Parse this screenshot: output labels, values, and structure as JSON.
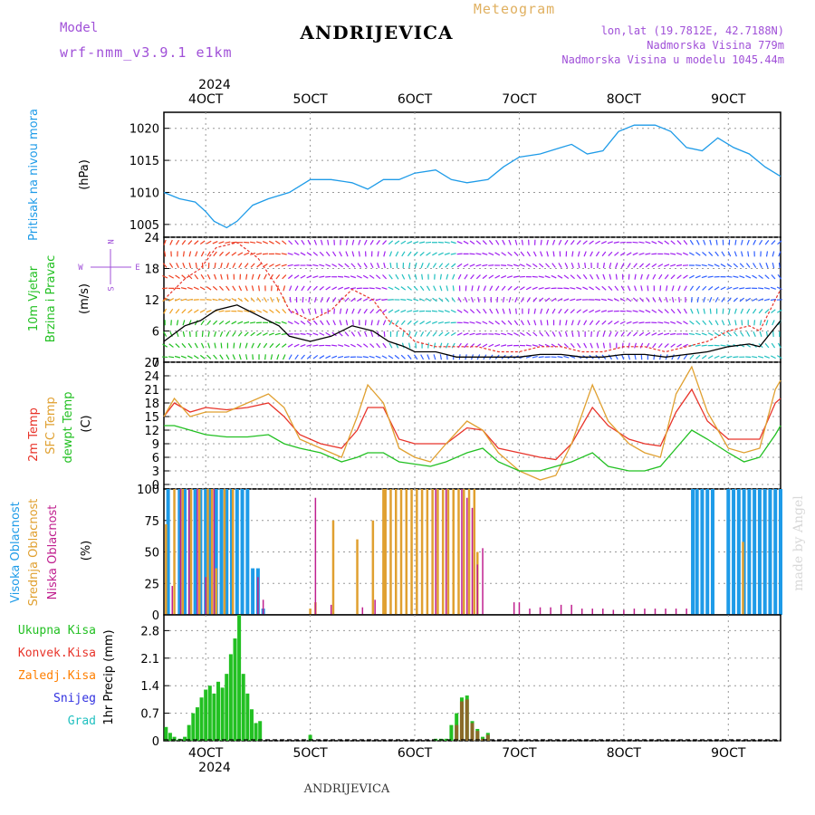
{
  "header": {
    "model_label": "Model",
    "model_name": "wrf-nmm_v3.9.1 e1km",
    "station": "ANDRIJEVICA",
    "meteogram_label": "Meteogram",
    "lonlat": "lon,lat (19.7812E, 42.7188N)",
    "elevation": "Nadmorska Visina 779m",
    "model_elevation": "Nadmorska Visina u modelu 1045.44m"
  },
  "footer": {
    "station": "ANDRIJEVICA",
    "watermark": "made by Angel"
  },
  "time_axis": {
    "year_label": "2024",
    "ticks": [
      "4OCT",
      "5OCT",
      "6OCT",
      "7OCT",
      "8OCT",
      "9OCT"
    ],
    "range_days": [
      3.6,
      9.5
    ]
  },
  "colors": {
    "pressure": "#1e9be8",
    "wind_avg": "#000000",
    "wind_gust": "#e8342a",
    "temp2m": "#e8342a",
    "sfc_temp": "#e0a030",
    "dewpt": "#22c022",
    "cloud_high": "#1e9be8",
    "cloud_mid": "#e0a030",
    "cloud_low": "#c0208f",
    "precip_total": "#22c022",
    "precip_conv": "#e8342a",
    "precip_frozen": "#ff7f00",
    "snow": "#3030e0",
    "graupel": "#20c0c0"
  },
  "chart_data": [
    {
      "type": "line",
      "panel": "pressure",
      "ylabel": [
        "Pritisak na nivou mora",
        "(hPa)"
      ],
      "yticks": [
        1005,
        1010,
        1015,
        1020
      ],
      "ylim": [
        1003,
        1022.5
      ],
      "grid": true,
      "series": [
        {
          "x": [
            3.6,
            3.75,
            3.9,
            4.0,
            4.08,
            4.2,
            4.3,
            4.45,
            4.6,
            4.8,
            5.0,
            5.2,
            5.4,
            5.55,
            5.7,
            5.85,
            6.0,
            6.2,
            6.35,
            6.5,
            6.7,
            6.85,
            7.0,
            7.2,
            7.4,
            7.5,
            7.65,
            7.8,
            7.95,
            8.1,
            8.3,
            8.45,
            8.6,
            8.75,
            8.9,
            9.05,
            9.2,
            9.35,
            9.5
          ],
          "y": [
            1010,
            1009,
            1008.5,
            1007,
            1005.5,
            1004.5,
            1005.5,
            1008,
            1009,
            1010,
            1012,
            1012,
            1011.5,
            1010.5,
            1012,
            1012,
            1013,
            1013.5,
            1012,
            1011.5,
            1012,
            1014,
            1015.5,
            1016,
            1017,
            1017.5,
            1016,
            1016.5,
            1019.5,
            1020.5,
            1020.5,
            1019.5,
            1017,
            1016.5,
            1018.5,
            1017,
            1016,
            1014,
            1012.5
          ]
        }
      ]
    },
    {
      "type": "line",
      "panel": "wind",
      "ylabel": [
        "10m Vjetar",
        "Brzina i Pravac",
        "(m/s)"
      ],
      "direction_legend": [
        "N",
        "W",
        "E",
        "S"
      ],
      "yticks": [
        0,
        6,
        12,
        18,
        24
      ],
      "ylim": [
        0,
        24
      ],
      "grid": true,
      "series": [
        {
          "name": "avg",
          "x": [
            3.6,
            3.8,
            3.95,
            4.1,
            4.3,
            4.5,
            4.7,
            4.8,
            5.0,
            5.2,
            5.4,
            5.6,
            5.75,
            5.9,
            6.0,
            6.2,
            6.4,
            6.6,
            6.8,
            7.0,
            7.2,
            7.4,
            7.6,
            7.8,
            8.0,
            8.2,
            8.4,
            8.6,
            8.8,
            9.0,
            9.2,
            9.3,
            9.5
          ],
          "y": [
            4,
            7,
            8,
            10,
            11,
            9,
            7,
            5,
            4,
            5,
            7,
            6,
            4,
            3,
            2,
            2,
            1,
            1,
            1,
            1,
            1.5,
            1.5,
            1,
            1,
            1.5,
            1.5,
            1,
            1.5,
            2,
            3,
            3.5,
            3,
            8
          ]
        },
        {
          "name": "gust",
          "x": [
            3.6,
            3.8,
            3.95,
            4.1,
            4.3,
            4.5,
            4.7,
            4.8,
            5.0,
            5.2,
            5.4,
            5.6,
            5.75,
            5.9,
            6.0,
            6.2,
            6.4,
            6.6,
            6.8,
            7.0,
            7.2,
            7.4,
            7.6,
            7.8,
            8.0,
            8.2,
            8.4,
            8.6,
            8.8,
            9.0,
            9.2,
            9.3,
            9.5
          ],
          "y": [
            12,
            16,
            18,
            22,
            23,
            20,
            14,
            10,
            8,
            10,
            14,
            12,
            8,
            6,
            4,
            3,
            3,
            3,
            2,
            2,
            3,
            3,
            2,
            2,
            3,
            3,
            2,
            3,
            4,
            6,
            7,
            6,
            14
          ]
        }
      ]
    },
    {
      "type": "line",
      "panel": "temperature",
      "ylabel": [
        "2m Temp",
        "SFC Temp",
        "dewpt Temp",
        "(C)"
      ],
      "yticks": [
        0,
        3,
        6,
        9,
        12,
        15,
        18,
        21,
        24,
        27
      ],
      "ylim": [
        -1,
        27
      ],
      "grid": true,
      "series": [
        {
          "name": "2m Temp",
          "x": [
            3.6,
            3.7,
            3.85,
            4.0,
            4.2,
            4.4,
            4.6,
            4.75,
            4.9,
            5.1,
            5.3,
            5.45,
            5.55,
            5.7,
            5.85,
            6.0,
            6.15,
            6.3,
            6.5,
            6.65,
            6.8,
            7.0,
            7.2,
            7.35,
            7.5,
            7.7,
            7.85,
            8.05,
            8.2,
            8.35,
            8.5,
            8.65,
            8.8,
            9.0,
            9.15,
            9.3,
            9.45,
            9.5
          ],
          "y": [
            15,
            18,
            16,
            17,
            16.5,
            17,
            18,
            15,
            11,
            9,
            8,
            12,
            17,
            17,
            10,
            9,
            9,
            9,
            12.5,
            12,
            8,
            7,
            6,
            5.5,
            9,
            17,
            13,
            10,
            9,
            8.5,
            16,
            21,
            14,
            10,
            10,
            10,
            18,
            19
          ]
        },
        {
          "name": "SFC Temp",
          "x": [
            3.6,
            3.7,
            3.85,
            4.0,
            4.2,
            4.4,
            4.6,
            4.75,
            4.9,
            5.1,
            5.3,
            5.45,
            5.55,
            5.7,
            5.85,
            6.0,
            6.15,
            6.3,
            6.5,
            6.65,
            6.8,
            7.0,
            7.2,
            7.35,
            7.5,
            7.7,
            7.85,
            8.05,
            8.2,
            8.35,
            8.5,
            8.65,
            8.8,
            9.0,
            9.15,
            9.3,
            9.45,
            9.5
          ],
          "y": [
            15,
            19,
            15,
            16,
            16,
            18,
            20,
            17,
            10,
            8,
            6,
            15,
            22,
            18,
            8,
            6,
            5,
            9,
            14,
            12,
            7,
            3,
            1,
            2,
            9,
            22,
            14,
            9,
            7,
            6,
            20,
            26,
            16,
            8,
            7,
            8,
            21,
            23
          ]
        },
        {
          "name": "dewpt Temp",
          "x": [
            3.6,
            3.7,
            3.85,
            4.0,
            4.2,
            4.4,
            4.6,
            4.75,
            4.9,
            5.1,
            5.3,
            5.45,
            5.55,
            5.7,
            5.85,
            6.0,
            6.15,
            6.3,
            6.5,
            6.65,
            6.8,
            7.0,
            7.2,
            7.35,
            7.5,
            7.7,
            7.85,
            8.05,
            8.2,
            8.35,
            8.5,
            8.65,
            8.8,
            9.0,
            9.15,
            9.3,
            9.45,
            9.5
          ],
          "y": [
            13,
            13,
            12,
            11,
            10.5,
            10.5,
            11,
            9,
            8,
            7,
            5,
            6,
            7,
            7,
            5,
            4.5,
            4,
            5,
            7,
            8,
            5,
            3,
            3,
            4,
            5,
            7,
            4,
            3,
            3,
            4,
            8,
            12,
            10,
            7,
            5,
            6,
            11,
            13
          ]
        }
      ]
    },
    {
      "type": "bar",
      "panel": "clouds",
      "ylabel": [
        "Visoka Oblacnost",
        "Srednja Oblacnost",
        "Niska Oblacnost",
        "(%)"
      ],
      "yticks": [
        0,
        25,
        50,
        75,
        100
      ],
      "ylim": [
        0,
        100
      ],
      "grid": true,
      "series": [
        {
          "name": "Visoka Oblacnost",
          "x": [
            3.64,
            3.75,
            3.8,
            3.85,
            3.9,
            3.95,
            4.0,
            4.04,
            4.1,
            4.15,
            4.2,
            4.25,
            4.3,
            4.35,
            4.4,
            4.45,
            4.5,
            4.55,
            8.66,
            8.7,
            8.75,
            8.8,
            8.85,
            9.0,
            9.05,
            9.1,
            9.15,
            9.2,
            9.25,
            9.3,
            9.35,
            9.4,
            9.45,
            9.5
          ],
          "values": [
            100,
            100,
            100,
            100,
            100,
            100,
            100,
            100,
            100,
            100,
            100,
            100,
            100,
            100,
            100,
            37,
            37,
            5,
            100,
            100,
            100,
            100,
            100,
            100,
            100,
            100,
            100,
            100,
            100,
            100,
            100,
            100,
            100,
            100
          ]
        },
        {
          "name": "Srednja Oblacnost",
          "x": [
            3.62,
            3.7,
            3.78,
            3.86,
            3.94,
            4.02,
            4.06,
            4.1,
            4.18,
            4.26,
            5.0,
            5.05,
            5.22,
            5.45,
            5.6,
            5.7,
            5.72,
            5.77,
            5.82,
            5.87,
            5.92,
            5.97,
            6.02,
            6.07,
            6.12,
            6.17,
            6.22,
            6.27,
            6.32,
            6.37,
            6.42,
            6.47,
            6.52,
            6.57,
            6.6,
            9.14
          ],
          "values": [
            72,
            100,
            100,
            100,
            100,
            100,
            100,
            37,
            100,
            100,
            5,
            10,
            75,
            60,
            75,
            100,
            100,
            100,
            100,
            100,
            100,
            100,
            100,
            100,
            100,
            100,
            100,
            100,
            100,
            100,
            100,
            100,
            100,
            100,
            50,
            58
          ]
        },
        {
          "name": "Niska Oblacnost",
          "x": [
            3.68,
            3.76,
            3.84,
            3.92,
            4.0,
            4.08,
            4.5,
            4.55,
            5.05,
            5.2,
            5.5,
            5.62,
            6.2,
            6.3,
            6.45,
            6.5,
            6.55,
            6.6,
            6.65,
            6.95,
            7.0,
            7.1,
            7.2,
            7.3,
            7.4,
            7.5,
            7.6,
            7.7,
            7.8,
            7.9,
            8.0,
            8.1,
            8.2,
            8.3,
            8.4,
            8.5,
            8.6
          ],
          "values": [
            23,
            100,
            100,
            100,
            30,
            100,
            30,
            12,
            93,
            8,
            6,
            12,
            100,
            100,
            100,
            93,
            85,
            40,
            53,
            10,
            10,
            5,
            6,
            6,
            8,
            8,
            5,
            5,
            5,
            4,
            4,
            5,
            5,
            5,
            5,
            5,
            5
          ]
        }
      ]
    },
    {
      "type": "bar",
      "panel": "precipitation",
      "ylabel": [
        "1hr Precip (mm)"
      ],
      "legend": [
        "Ukupna Kisa",
        "Konvek.Kisa",
        "Zaledj.Kisa",
        "Snijeg",
        "Grad"
      ],
      "yticks": [
        0,
        0.7,
        1.4,
        2.1,
        2.8
      ],
      "ylim": [
        0,
        3.2
      ],
      "grid": true,
      "series": [
        {
          "name": "Ukupna Kisa",
          "x": [
            3.62,
            3.66,
            3.7,
            3.75,
            3.8,
            3.84,
            3.88,
            3.92,
            3.96,
            4.0,
            4.04,
            4.08,
            4.12,
            4.16,
            4.2,
            4.24,
            4.28,
            4.32,
            4.36,
            4.4,
            4.44,
            4.48,
            4.52,
            5.0,
            6.2,
            6.25,
            6.3,
            6.35,
            6.4,
            6.45,
            6.5,
            6.55,
            6.6,
            6.65,
            6.7
          ],
          "values": [
            0.35,
            0.2,
            0.1,
            0.05,
            0.1,
            0.4,
            0.7,
            0.85,
            1.1,
            1.3,
            1.4,
            1.2,
            1.5,
            1.35,
            1.7,
            2.2,
            2.6,
            3.2,
            1.7,
            1.2,
            0.8,
            0.45,
            0.5,
            0.15,
            0.05,
            0.05,
            0.05,
            0.4,
            0.7,
            1.1,
            1.15,
            0.5,
            0.3,
            0.1,
            0.2
          ]
        },
        {
          "name": "Konvek.Kisa",
          "x": [
            6.4,
            6.45,
            6.5,
            6.55,
            6.6,
            6.65,
            6.7
          ],
          "values": [
            0.4,
            1.0,
            1.05,
            0.45,
            0.25,
            0.05,
            0.15
          ]
        }
      ]
    }
  ]
}
